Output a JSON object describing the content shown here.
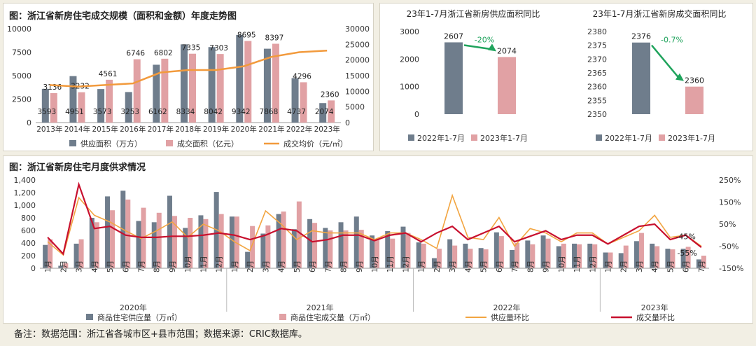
{
  "footer": {
    "note": "备注：数据范围：浙江省各城市区+县市范围；数据来源：CRIC数据库。"
  },
  "colors": {
    "supply": "#6f7d8c",
    "sales": "#e1a1a4",
    "price": "#f29a3c",
    "sales_mom": "#c8102e",
    "supply_mom": "#f2a541",
    "arrow": "#1fa35c"
  },
  "chart_data": [
    {
      "id": "annual",
      "type": "bar",
      "title": "图：浙江省新房住宅成交规模（面积和金额）年度走势图",
      "categories": [
        "2013年",
        "2014年",
        "2015年",
        "2016年",
        "2017年",
        "2018年",
        "2019年",
        "2020年",
        "2021年",
        "2022年",
        "2023年"
      ],
      "series": [
        {
          "name": "供应面积（万方）",
          "axis": "left",
          "values": [
            3593,
            4951,
            3573,
            3253,
            6162,
            8334,
            8042,
            9342,
            7868,
            4737,
            2074
          ],
          "labels": [
            "3593",
            "4951",
            "3573",
            "3253",
            "6162",
            "8334",
            "8042",
            "9342",
            "7868",
            "4737",
            "2074"
          ]
        },
        {
          "name": "成交面积（亿元）",
          "axis": "left",
          "values": [
            3136,
            3232,
            4561,
            6746,
            6802,
            7335,
            7303,
            8695,
            8397,
            4296,
            2360
          ],
          "labels": [
            "3136",
            "3232",
            "4561",
            "6746",
            "6802",
            "7335",
            "7303",
            "8695",
            "8397",
            "4296",
            "2360"
          ]
        },
        {
          "name": "成交均价（元/㎡）",
          "axis": "right",
          "type": "line",
          "values": [
            12000,
            11500,
            12000,
            12500,
            16000,
            16800,
            16800,
            18000,
            21000,
            22500,
            23000
          ]
        }
      ],
      "yleft": {
        "ticks": [
          "0",
          "2500",
          "5000",
          "7500",
          "10000"
        ],
        "ylim": [
          0,
          10000
        ]
      },
      "yright": {
        "ticks": [
          "0",
          "5000",
          "10000",
          "15000",
          "20000",
          "25000",
          "30000"
        ],
        "ylim": [
          0,
          30000
        ]
      }
    },
    {
      "id": "supply_yoy",
      "type": "bar",
      "title": "23年1-7月浙江省新房供应面积同比",
      "categories": [
        "2022年1-7月",
        "2023年1-7月"
      ],
      "values": [
        2607,
        2074
      ],
      "labels": [
        "2607",
        "2074"
      ],
      "change": "-20%",
      "legend": [
        "2022年1-7月",
        "2023年1-7月"
      ],
      "yticks": [
        "0",
        "1000",
        "2000",
        "3000"
      ],
      "ylim": [
        0,
        3000
      ]
    },
    {
      "id": "sales_yoy",
      "type": "bar",
      "title": "23年1-7月浙江省新房成交面积同比",
      "categories": [
        "2022年1-7月",
        "2023年1-7月"
      ],
      "values": [
        2376,
        2360
      ],
      "labels": [
        "2376",
        "2360"
      ],
      "change": "-0.7%",
      "legend": [
        "2022年1-7月",
        "2023年1-7月"
      ],
      "yticks": [
        "2350",
        "2355",
        "2360",
        "2365",
        "2370",
        "2375",
        "2380"
      ],
      "ylim": [
        2350,
        2380
      ]
    },
    {
      "id": "monthly",
      "type": "bar",
      "title": "图：浙江省新房住宅月度供求情况",
      "months": [
        "1月",
        "2月",
        "3月",
        "4月",
        "5月",
        "6月",
        "7月",
        "8月",
        "9月",
        "10月",
        "11月",
        "12月",
        "1月",
        "2月",
        "3月",
        "4月",
        "5月",
        "6月",
        "7月",
        "8月",
        "9月",
        "10月",
        "11月",
        "12月",
        "1月",
        "2月",
        "3月",
        "4月",
        "5月",
        "6月",
        "7月",
        "8月",
        "9月",
        "10月",
        "11月",
        "12月",
        "1月",
        "2月",
        "3月",
        "4月",
        "5月",
        "6月",
        "7月"
      ],
      "years": [
        {
          "label": "2020年",
          "start": 0,
          "end": 11
        },
        {
          "label": "2021年",
          "start": 12,
          "end": 23
        },
        {
          "label": "2022年",
          "start": 24,
          "end": 35
        },
        {
          "label": "2023年",
          "start": 36,
          "end": 42
        }
      ],
      "series": [
        {
          "name": "商品住宅供应量（万㎡）",
          "axis": "left",
          "values": [
            370,
            40,
            390,
            800,
            1140,
            1230,
            750,
            730,
            1150,
            640,
            840,
            1210,
            820,
            260,
            550,
            860,
            620,
            780,
            640,
            730,
            820,
            520,
            590,
            660,
            410,
            160,
            460,
            390,
            320,
            570,
            290,
            440,
            520,
            350,
            390,
            390,
            250,
            240,
            430,
            390,
            310,
            310,
            140
          ]
        },
        {
          "name": "商品住宅成交量（万㎡）",
          "axis": "left",
          "values": [
            460,
            80,
            460,
            730,
            920,
            1090,
            960,
            880,
            830,
            800,
            780,
            860,
            820,
            670,
            680,
            900,
            1060,
            720,
            600,
            600,
            610,
            460,
            470,
            560,
            390,
            310,
            360,
            310,
            300,
            510,
            400,
            380,
            470,
            390,
            380,
            380,
            250,
            360,
            560,
            350,
            300,
            340,
            200
          ]
        },
        {
          "name": "供应量环比",
          "axis": "right",
          "type": "line",
          "values": [
            -30,
            -90,
            170,
            90,
            60,
            20,
            -15,
            20,
            60,
            -10,
            50,
            20,
            -30,
            -70,
            110,
            50,
            -20,
            20,
            10,
            10,
            10,
            -20,
            10,
            10,
            -20,
            -60,
            180,
            -10,
            -20,
            80,
            -50,
            30,
            10,
            -30,
            10,
            10,
            -40,
            -10,
            20,
            90,
            -10,
            0,
            -50
          ]
        },
        {
          "name": "成交量环比",
          "axis": "right",
          "type": "line",
          "values": [
            -10,
            -85,
            230,
            30,
            40,
            0,
            -10,
            -10,
            -5,
            -5,
            0,
            10,
            0,
            -20,
            0,
            30,
            20,
            -30,
            -20,
            0,
            0,
            -25,
            0,
            10,
            -30,
            10,
            40,
            -20,
            10,
            40,
            -30,
            -5,
            20,
            -20,
            0,
            0,
            -40,
            0,
            40,
            50,
            -20,
            0,
            -55
          ]
        }
      ],
      "annotations": [
        "-45%",
        "-55%"
      ],
      "yleft": {
        "ticks": [
          "0",
          "200",
          "400",
          "600",
          "800",
          "1,000",
          "1,200",
          "1,400"
        ],
        "ylim": [
          0,
          1400
        ]
      },
      "yright": {
        "ticks": [
          "-150%",
          "-50%",
          "50%",
          "150%",
          "250%"
        ],
        "ylim": [
          -150,
          250
        ]
      }
    }
  ]
}
